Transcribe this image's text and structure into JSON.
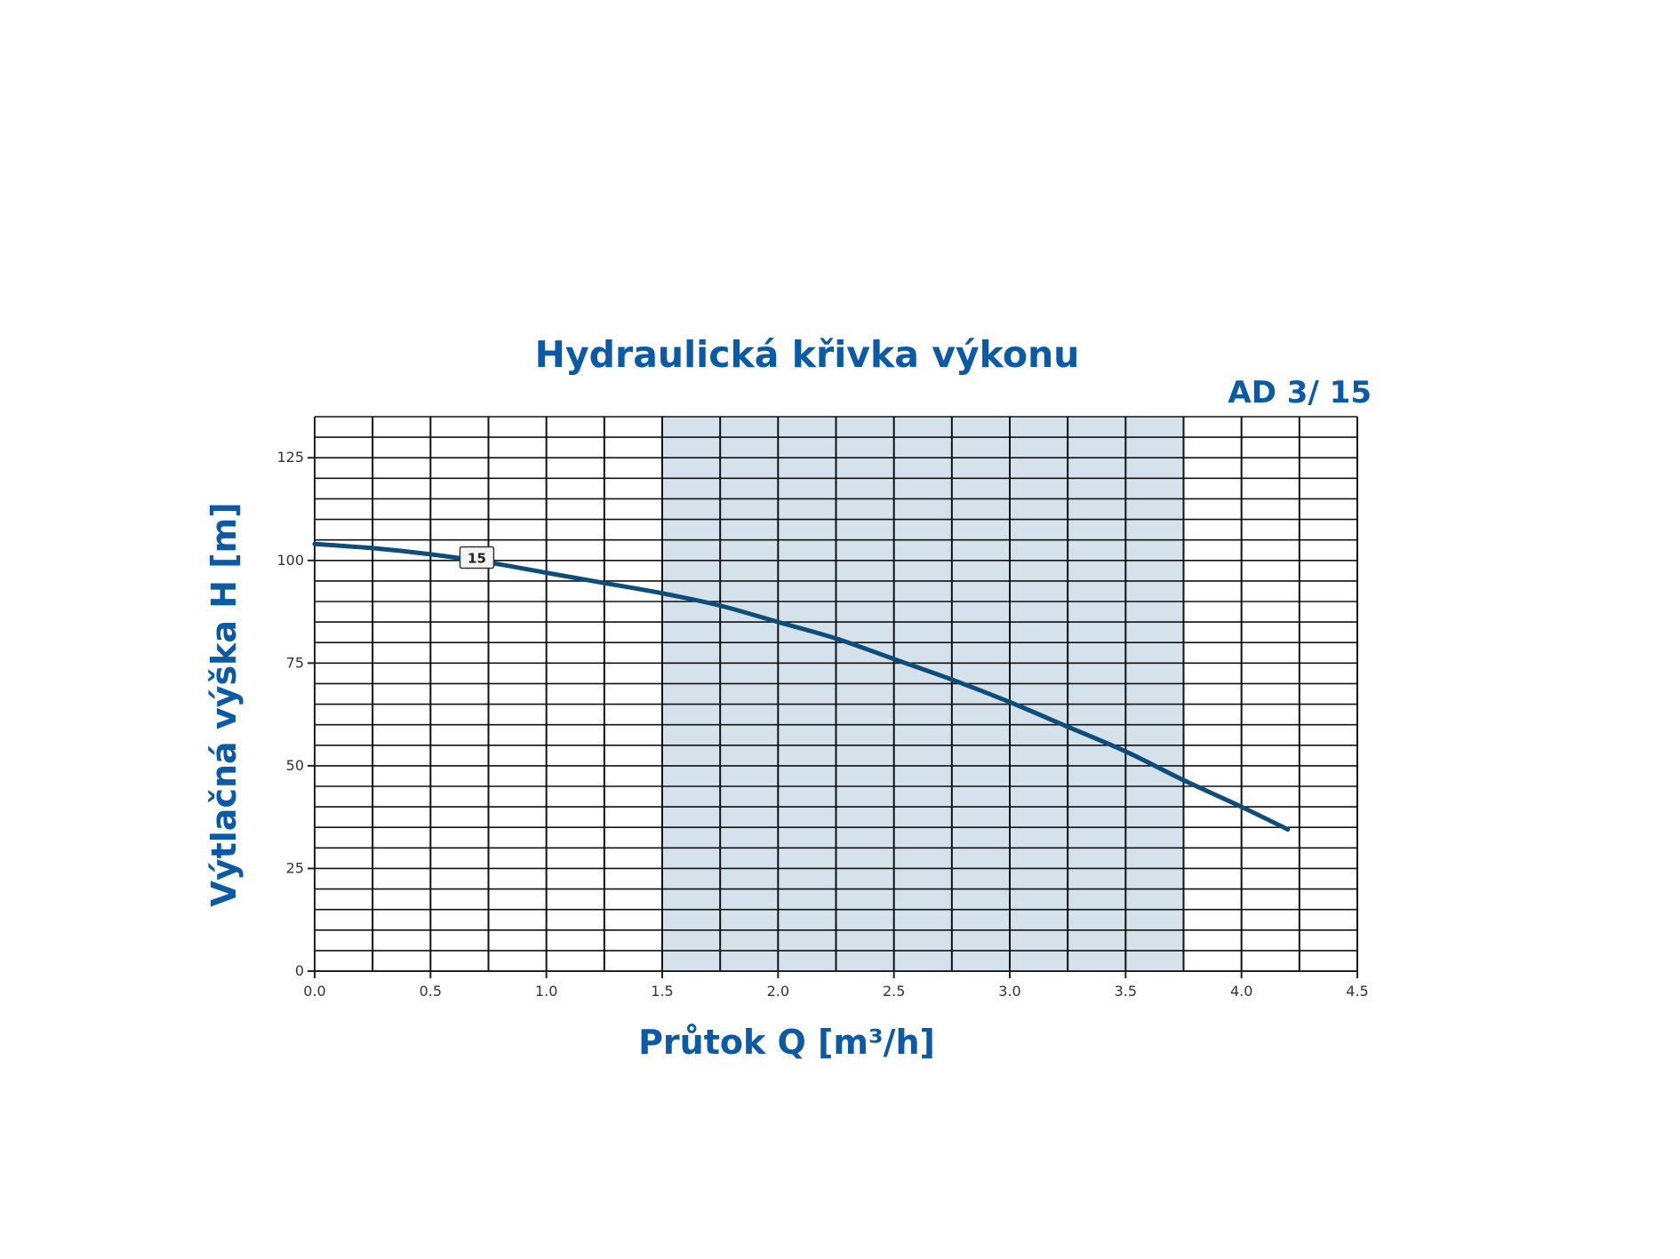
{
  "chart_data": {
    "type": "line",
    "title": "Hydraulická křivka výkonu",
    "subtitle": "AD 3/ 15",
    "xlabel": "Průtok Q [m³/h]",
    "ylabel": "Výtlačná výška H [m]",
    "xlim": [
      0.0,
      4.5
    ],
    "ylim": [
      0,
      135
    ],
    "x_ticks": [
      "0.0",
      "0.5",
      "1.0",
      "1.5",
      "2.0",
      "2.5",
      "3.0",
      "3.5",
      "4.0",
      "4.5"
    ],
    "y_ticks": [
      "0",
      "25",
      "50",
      "75",
      "100",
      "125"
    ],
    "grid": true,
    "recommended_range": [
      1.5,
      3.75
    ],
    "series": [
      {
        "name": "15",
        "x": [
          0.0,
          0.25,
          0.5,
          0.75,
          1.0,
          1.25,
          1.5,
          1.75,
          2.0,
          2.25,
          2.5,
          2.75,
          3.0,
          3.25,
          3.5,
          3.75,
          4.0,
          4.2
        ],
        "y": [
          104,
          103,
          101.5,
          99.5,
          97,
          94.5,
          92,
          89,
          85,
          81,
          76,
          71,
          65.5,
          59.5,
          53.5,
          46.5,
          40,
          34.5
        ]
      }
    ]
  },
  "colors": {
    "title": "#0b5aa6",
    "axis_label": "#0b5aa6",
    "curve": "#0e4d7a",
    "grid": "#111111",
    "recommended_fill": "#d5e2ec"
  }
}
